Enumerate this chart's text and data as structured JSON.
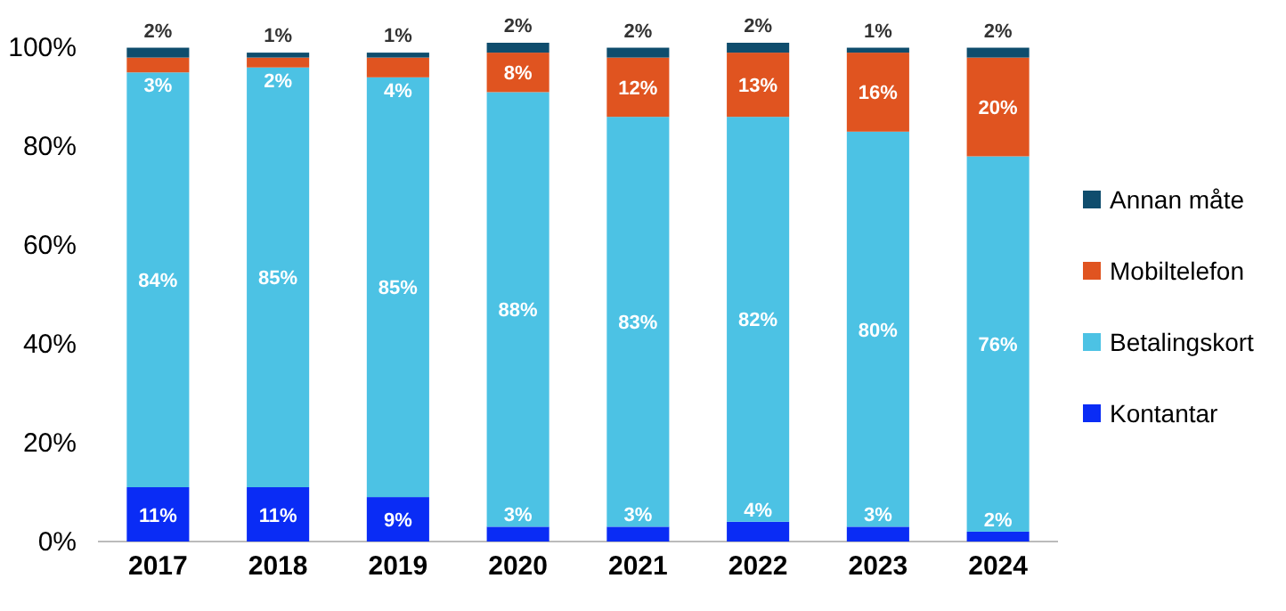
{
  "chart_data": {
    "type": "bar",
    "stacked": true,
    "categories": [
      "2017",
      "2018",
      "2019",
      "2020",
      "2021",
      "2022",
      "2023",
      "2024"
    ],
    "ylim": [
      0,
      101
    ],
    "yticks": [
      {
        "value": 0,
        "label": "0%"
      },
      {
        "value": 20,
        "label": "20%"
      },
      {
        "value": 40,
        "label": "40%"
      },
      {
        "value": 60,
        "label": "60%"
      },
      {
        "value": 80,
        "label": "80%"
      },
      {
        "value": 100,
        "label": "100%"
      }
    ],
    "legend": "right",
    "grid": false,
    "series": [
      {
        "name": "Kontantar",
        "color": "#0a2cf5",
        "values": [
          11,
          11,
          9,
          3,
          3,
          4,
          3,
          2
        ],
        "value_labels": [
          "11%",
          "11%",
          "9%",
          "3%",
          "3%",
          "4%",
          "3%",
          "2%"
        ]
      },
      {
        "name": "Betalingskort",
        "color": "#4cc2e4",
        "values": [
          84,
          85,
          85,
          88,
          83,
          82,
          80,
          76
        ],
        "value_labels": [
          "84%",
          "85%",
          "85%",
          "88%",
          "83%",
          "82%",
          "80%",
          "76%"
        ]
      },
      {
        "name": "Mobiltelefon",
        "color": "#e05420",
        "values": [
          3,
          2,
          4,
          8,
          12,
          13,
          16,
          20
        ],
        "value_labels": [
          "3%",
          "2%",
          "4%",
          "8%",
          "12%",
          "13%",
          "16%",
          "20%"
        ]
      },
      {
        "name": "Annan måte",
        "color": "#0f4d6d",
        "values": [
          2,
          1,
          1,
          2,
          2,
          2,
          1,
          2
        ],
        "value_labels": [
          "2%",
          "1%",
          "1%",
          "2%",
          "2%",
          "2%",
          "1%",
          "2%"
        ]
      }
    ]
  }
}
